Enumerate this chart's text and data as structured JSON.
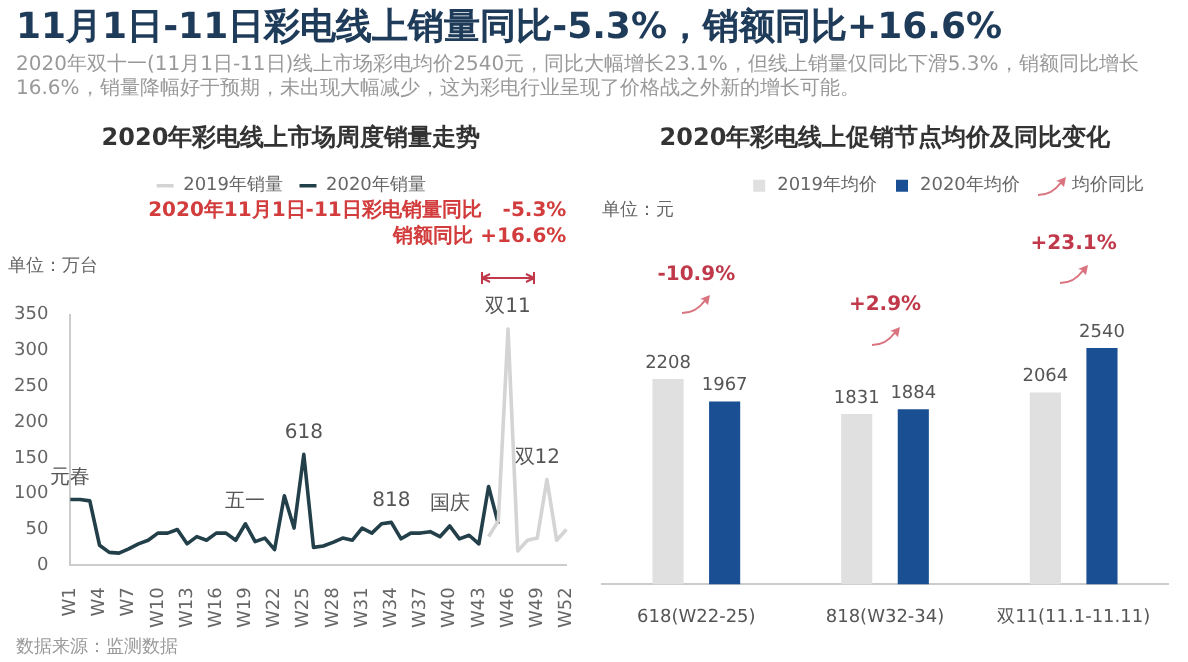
{
  "chart_data": [
    {
      "type": "other",
      "title": "11月1日-11日彩电线上销量同比-5.3%，销额同比+16.6%",
      "subtitle": "2020年双十一(11月1日-11日)线上市场彩电均价2540元，同比大幅增长23.1%，但线上销量仅同比下滑5.3%，销额同比增长16.6%，销量降幅好于预期，未出现大幅减少，这为彩电行业呈现了价格战之外新的增长可能。",
      "annotations": [
        "数据来源：监测数据"
      ]
    },
    {
      "type": "line",
      "title": "2020年彩电线上市场周度销量走势",
      "ylabel": "单位：万台",
      "categories": [
        "W1",
        null,
        null,
        "W4",
        null,
        null,
        "W7",
        null,
        null,
        "W10",
        null,
        null,
        "W13",
        null,
        null,
        "W16",
        null,
        null,
        "W19",
        null,
        null,
        "W22",
        null,
        null,
        "W25",
        null,
        null,
        "W28",
        null,
        null,
        "W31",
        null,
        null,
        "W34",
        null,
        null,
        "W37",
        null,
        null,
        "W40",
        null,
        null,
        "W43",
        null,
        null,
        "W46",
        null,
        null,
        "W49",
        null,
        null,
        "W52"
      ],
      "series": [
        {
          "name": "2019年销量",
          "color": "#d4d4d4",
          "values": [
            null,
            null,
            null,
            null,
            null,
            null,
            null,
            null,
            null,
            null,
            null,
            null,
            null,
            null,
            null,
            null,
            null,
            null,
            null,
            null,
            null,
            null,
            null,
            null,
            null,
            null,
            null,
            null,
            null,
            null,
            null,
            null,
            null,
            null,
            null,
            null,
            null,
            null,
            null,
            null,
            null,
            null,
            null,
            40,
            62,
            330,
            20,
            35,
            38,
            120,
            35,
            50
          ]
        },
        {
          "name": "2020年销量",
          "color": "#23404a",
          "values": [
            92,
            92,
            90,
            28,
            18,
            17,
            23,
            30,
            35,
            45,
            45,
            50,
            30,
            40,
            35,
            45,
            45,
            35,
            58,
            33,
            38,
            22,
            97,
            52,
            155,
            25,
            27,
            32,
            38,
            35,
            52,
            45,
            58,
            60,
            37,
            45,
            45,
            47,
            40,
            55,
            37,
            42,
            30,
            110,
            58,
            null,
            null,
            null,
            null,
            null,
            null,
            null
          ]
        }
      ],
      "ylim": [
        0,
        350
      ],
      "yticks": [
        0,
        50,
        100,
        150,
        200,
        250,
        300,
        350
      ],
      "grid": false,
      "legend": "top",
      "marker": "none",
      "annotations": [
        "2020年11月1日-11日彩电销量同比   -5.3%",
        "销额同比 +16.6%",
        {
          "text": "元春",
          "x": "W1",
          "y": 92
        },
        {
          "text": "五一",
          "x": "W19",
          "y": 58
        },
        {
          "text": "618",
          "x": "W25",
          "y": 155
        },
        {
          "text": "818",
          "x": "W34",
          "y": 60
        },
        {
          "text": "国庆",
          "x": "W40",
          "y": 55
        },
        {
          "text": "双11",
          "x": "W46",
          "y": 330
        },
        {
          "text": "双12",
          "x": "W49",
          "y": 120
        }
      ]
    },
    {
      "type": "bar",
      "title": "2020年彩电线上促销节点均价及同比变化",
      "ylabel": "单位：元",
      "categories": [
        "618(W22-25)",
        "818(W32-34)",
        "双11(11.1-11.11)"
      ],
      "series": [
        {
          "name": "2019年均价",
          "color": "#e0e0e0",
          "values": [
            2208,
            1831,
            2064
          ]
        },
        {
          "name": "2020年均价",
          "color": "#1a4f93",
          "values": [
            1967,
            1884,
            2540
          ]
        }
      ],
      "annotations": [
        "均价同比",
        "-10.9%",
        "+2.9%",
        "+23.1%"
      ],
      "data_labels": true,
      "grid": false,
      "legend": "top"
    }
  ]
}
